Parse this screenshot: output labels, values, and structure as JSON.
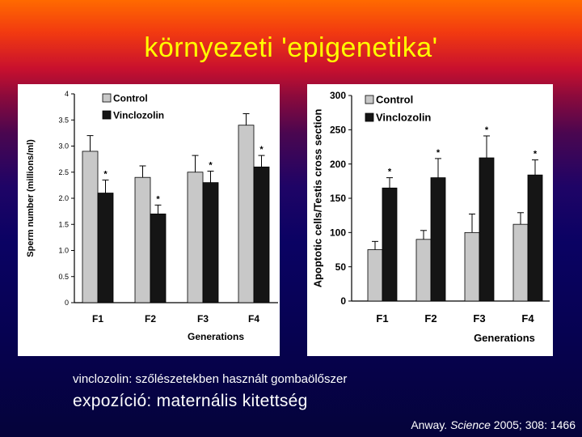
{
  "slide": {
    "title": "környezeti 'epigenetika'",
    "caption": "vinclozolin: szőlészetekben használt gombaölőszer",
    "exposure": "expozíció: maternális kitettség",
    "citation_author": "Anway.",
    "citation_journal": "Science",
    "citation_rest": "2005; 308: 1466"
  },
  "colors": {
    "control": "#c8c8c8",
    "vinclozolin": "#151515",
    "title": "#ffff00"
  },
  "chart_data": [
    {
      "type": "bar",
      "categories": [
        "F1",
        "F2",
        "F3",
        "F4"
      ],
      "series": [
        {
          "name": "Control",
          "values": [
            2.9,
            2.4,
            2.5,
            3.4
          ],
          "errors": [
            0.3,
            0.22,
            0.32,
            0.22
          ],
          "significant": [
            false,
            false,
            false,
            false
          ]
        },
        {
          "name": "Vinclozolin",
          "values": [
            2.1,
            1.7,
            2.3,
            2.6
          ],
          "errors": [
            0.25,
            0.17,
            0.22,
            0.22
          ],
          "significant": [
            true,
            true,
            true,
            true
          ]
        }
      ],
      "xlabel": "Generations",
      "ylabel": "Sperm number (millions/ml)",
      "ylim": [
        0,
        4
      ],
      "yticks": [
        "0",
        "0.5",
        "1.0",
        "1.5",
        "2.0",
        "2.5",
        "3.0",
        "3.5",
        "4"
      ],
      "legend_position": "top-left",
      "grid": false
    },
    {
      "type": "bar",
      "categories": [
        "F1",
        "F2",
        "F3",
        "F4"
      ],
      "series": [
        {
          "name": "Control",
          "values": [
            75,
            90,
            100,
            112
          ],
          "errors": [
            12,
            13,
            27,
            17
          ],
          "significant": [
            false,
            false,
            false,
            false
          ]
        },
        {
          "name": "Vinclozolin",
          "values": [
            165,
            180,
            209,
            184
          ],
          "errors": [
            15,
            28,
            32,
            22
          ],
          "significant": [
            true,
            true,
            true,
            true
          ]
        }
      ],
      "xlabel": "Generations",
      "ylabel": "Apoptotic cells/Testis cross section",
      "ylim": [
        0,
        300
      ],
      "yticks": [
        "0",
        "50",
        "100",
        "150",
        "200",
        "250",
        "300"
      ],
      "legend_position": "top-left",
      "grid": false
    }
  ]
}
